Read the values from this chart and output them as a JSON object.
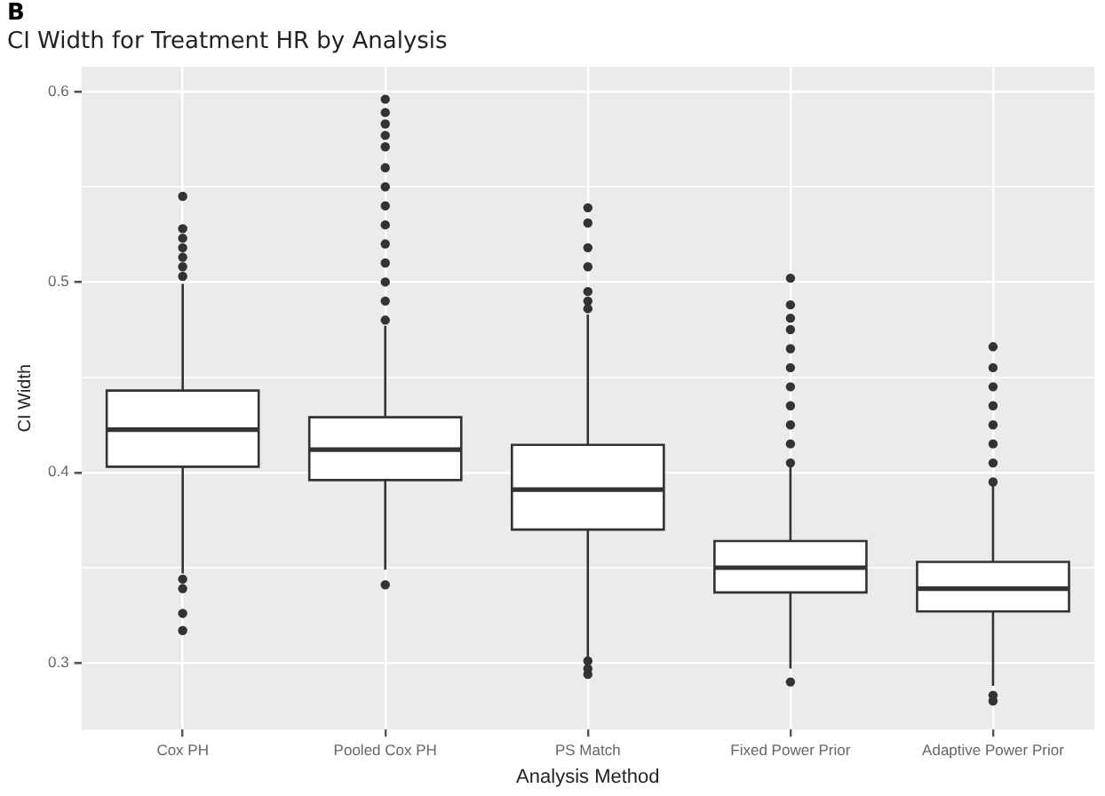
{
  "chart_data": {
    "type": "box",
    "title": "CI Width for Treatment HR by Analysis",
    "xlabel": "Analysis Method",
    "ylabel": "CI Width",
    "annotations": [
      "B"
    ],
    "categories": [
      "Cox PH",
      "Pooled Cox PH",
      "PS Match",
      "Fixed Power Prior",
      "Adaptive Power Prior"
    ],
    "boxes": [
      {
        "low": 0.347,
        "q1": 0.403,
        "median": 0.4225,
        "q3": 0.443,
        "high": 0.499,
        "outliers": [
          0.503,
          0.508,
          0.513,
          0.518,
          0.523,
          0.528,
          0.545,
          0.344,
          0.339,
          0.326,
          0.317
        ]
      },
      {
        "low": 0.349,
        "q1": 0.396,
        "median": 0.412,
        "q3": 0.429,
        "high": 0.477,
        "outliers": [
          0.48,
          0.49,
          0.5,
          0.51,
          0.52,
          0.53,
          0.54,
          0.55,
          0.56,
          0.571,
          0.577,
          0.583,
          0.589,
          0.596,
          0.341
        ]
      },
      {
        "low": 0.303,
        "q1": 0.37,
        "median": 0.391,
        "q3": 0.4145,
        "high": 0.483,
        "outliers": [
          0.486,
          0.49,
          0.495,
          0.508,
          0.518,
          0.531,
          0.539,
          0.301,
          0.297,
          0.294
        ]
      },
      {
        "low": 0.297,
        "q1": 0.337,
        "median": 0.35,
        "q3": 0.364,
        "high": 0.404,
        "outliers": [
          0.405,
          0.415,
          0.425,
          0.435,
          0.445,
          0.455,
          0.465,
          0.475,
          0.481,
          0.488,
          0.502,
          0.29
        ]
      },
      {
        "low": 0.288,
        "q1": 0.327,
        "median": 0.339,
        "q3": 0.353,
        "high": 0.393,
        "outliers": [
          0.395,
          0.405,
          0.415,
          0.425,
          0.435,
          0.445,
          0.455,
          0.466,
          0.283,
          0.28
        ]
      }
    ],
    "color": "#ffffff",
    "ylim": [
      0.265,
      0.613
    ],
    "yticks": [
      0.3,
      {
        "value": 0.35,
        "label": null
      },
      0.4,
      {
        "value": 0.45,
        "label": null
      },
      0.5,
      {
        "value": 0.55,
        "label": null
      },
      0.6
    ],
    "grid": true,
    "legend": false
  }
}
